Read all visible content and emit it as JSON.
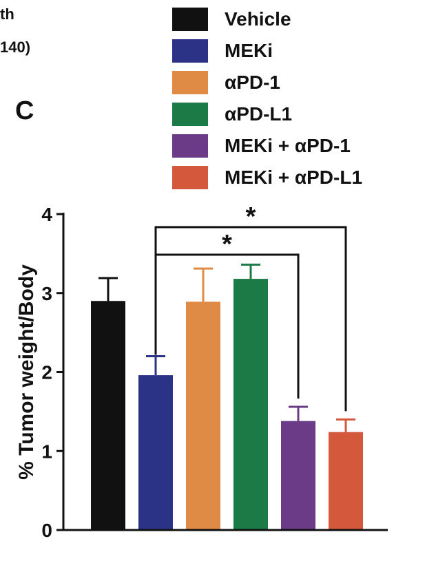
{
  "fragments": {
    "top_text_1": "th",
    "top_text_2": "140)"
  },
  "panel_label": "C",
  "legend": [
    {
      "label": "Vehicle",
      "color": "#111111"
    },
    {
      "label": "MEKi",
      "color": "#2b3386"
    },
    {
      "label": "αPD-1",
      "color": "#df8b45"
    },
    {
      "label": "αPD-L1",
      "color": "#1b7a45"
    },
    {
      "label": "MEKi + αPD-1",
      "color": "#6c3b88"
    },
    {
      "label": "MEKi + αPD-L1",
      "color": "#d4583b"
    }
  ],
  "chart_data": {
    "type": "bar",
    "categories": [
      "Vehicle",
      "MEKi",
      "αPD-1",
      "αPD-L1",
      "MEKi + αPD-1",
      "MEKi + αPD-L1"
    ],
    "values": [
      2.9,
      1.96,
      2.89,
      3.18,
      1.38,
      1.24
    ],
    "errors": [
      0.29,
      0.24,
      0.42,
      0.18,
      0.18,
      0.16
    ],
    "colors": [
      "#111111",
      "#2b3386",
      "#df8b45",
      "#1b7a45",
      "#6c3b88",
      "#d4583b"
    ],
    "ylabel": "% Tumor weight/Body",
    "ylim": [
      0,
      4
    ],
    "yticks": [
      "0",
      "1",
      "2",
      "3",
      "4"
    ],
    "xlabel": "",
    "significance": [
      {
        "from": "MEKi",
        "to": "MEKi + αPD-L1",
        "label": "*"
      },
      {
        "from": "MEKi",
        "to": "MEKi + αPD-1",
        "label": "*"
      }
    ]
  }
}
